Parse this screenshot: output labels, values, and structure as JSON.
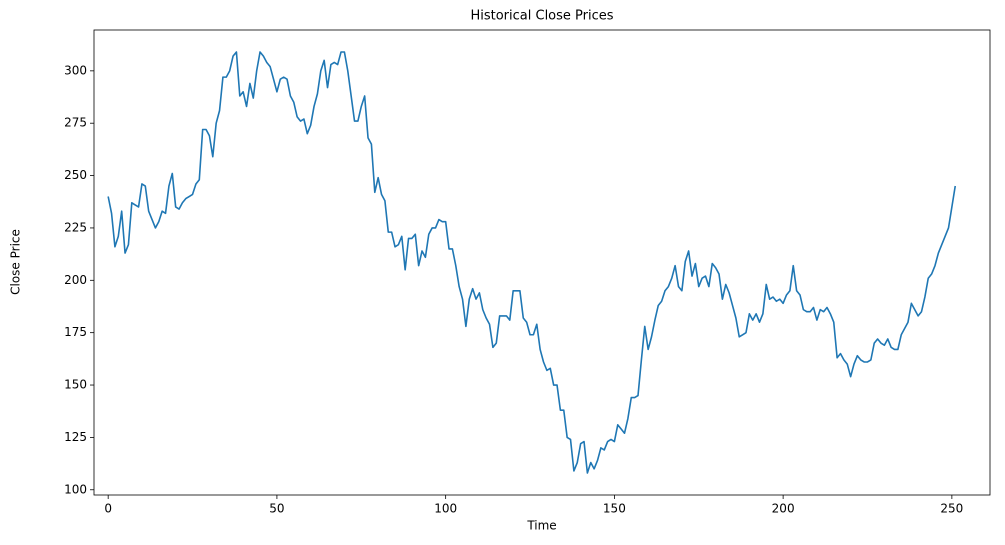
{
  "chart_data": {
    "type": "line",
    "title": "Historical Close Prices",
    "x_label": "Time",
    "y_label": "Close Price",
    "color": "#1f77b4",
    "x": [
      0,
      1,
      2,
      3,
      4,
      5,
      6,
      7,
      8,
      9,
      10,
      11,
      12,
      13,
      14,
      15,
      16,
      17,
      18,
      19,
      20,
      21,
      22,
      23,
      24,
      25,
      26,
      27,
      28,
      29,
      30,
      31,
      32,
      33,
      34,
      35,
      36,
      37,
      38,
      39,
      40,
      41,
      42,
      43,
      44,
      45,
      46,
      47,
      48,
      49,
      50,
      51,
      52,
      53,
      54,
      55,
      56,
      57,
      58,
      59,
      60,
      61,
      62,
      63,
      64,
      65,
      66,
      67,
      68,
      69,
      70,
      71,
      72,
      73,
      74,
      75,
      76,
      77,
      78,
      79,
      80,
      81,
      82,
      83,
      84,
      85,
      86,
      87,
      88,
      89,
      90,
      91,
      92,
      93,
      94,
      95,
      96,
      97,
      98,
      99,
      100,
      101,
      102,
      103,
      104,
      105,
      106,
      107,
      108,
      109,
      110,
      111,
      112,
      113,
      114,
      115,
      116,
      117,
      118,
      119,
      120,
      121,
      122,
      123,
      124,
      125,
      126,
      127,
      128,
      129,
      130,
      131,
      132,
      133,
      134,
      135,
      136,
      137,
      138,
      139,
      140,
      141,
      142,
      143,
      144,
      145,
      146,
      147,
      148,
      149,
      150,
      151,
      152,
      153,
      154,
      155,
      156,
      157,
      158,
      159,
      160,
      161,
      162,
      163,
      164,
      165,
      166,
      167,
      168,
      169,
      170,
      171,
      172,
      173,
      174,
      175,
      176,
      177,
      178,
      179,
      180,
      181,
      182,
      183,
      184,
      185,
      186,
      187,
      188,
      189,
      190,
      191,
      192,
      193,
      194,
      195,
      196,
      197,
      198,
      199,
      200,
      201,
      202,
      203,
      204,
      205,
      206,
      207,
      208,
      209,
      210,
      211,
      212,
      213,
      214,
      215,
      216,
      217,
      218,
      219,
      220,
      221,
      222,
      223,
      224,
      225,
      226,
      227,
      228,
      229,
      230,
      231,
      232,
      233,
      234,
      235,
      236,
      237,
      238,
      239,
      240,
      241,
      242,
      243,
      244,
      245,
      246,
      247,
      248,
      249,
      250,
      251
    ],
    "values": [
      240,
      232,
      216,
      221,
      233,
      213,
      217,
      237,
      236,
      235,
      246,
      245,
      233,
      229,
      225,
      228,
      233,
      232,
      245,
      251,
      235,
      234,
      237,
      239,
      240,
      241,
      246,
      248,
      272,
      272,
      269,
      259,
      275,
      281,
      297,
      297,
      300,
      307,
      309,
      288,
      290,
      283,
      294,
      287,
      300,
      309,
      307,
      304,
      302,
      296,
      290,
      296,
      297,
      296,
      288,
      285,
      278,
      276,
      277,
      270,
      274,
      283,
      289,
      300,
      305,
      292,
      303,
      304,
      303,
      309,
      309,
      300,
      288,
      276,
      276,
      283,
      288,
      268,
      265,
      242,
      249,
      241,
      238,
      223,
      223,
      216,
      217,
      221,
      205,
      220,
      220,
      222,
      207,
      214,
      211,
      222,
      225,
      225,
      229,
      228,
      228,
      215,
      215,
      207,
      197,
      191,
      178,
      191,
      196,
      191,
      194,
      186,
      182,
      179,
      168,
      170,
      183,
      183,
      183,
      181,
      195,
      195,
      195,
      182,
      180,
      174,
      174,
      179,
      167,
      161,
      157,
      158,
      150,
      150,
      138,
      138,
      125,
      124,
      109,
      113,
      122,
      123,
      108,
      113,
      110,
      114,
      120,
      119,
      123,
      124,
      123,
      131,
      129,
      127,
      134,
      144,
      144,
      145,
      162,
      178,
      167,
      173,
      181,
      188,
      190,
      195,
      197,
      201,
      207,
      197,
      195,
      209,
      214,
      202,
      208,
      197,
      201,
      202,
      197,
      208,
      206,
      203,
      191,
      198,
      194,
      188,
      182,
      173,
      174,
      175,
      184,
      181,
      184,
      180,
      184,
      198,
      191,
      192,
      190,
      191,
      189,
      193,
      195,
      207,
      195,
      193,
      186,
      185,
      185,
      187,
      181,
      186,
      185,
      187,
      184,
      180,
      163,
      165,
      162,
      160,
      154,
      160,
      164,
      162,
      161,
      161,
      162,
      170,
      172,
      170,
      169,
      172,
      168,
      167,
      167,
      174,
      177,
      180,
      189,
      186,
      183,
      185,
      192,
      201,
      203,
      207,
      213,
      217,
      221,
      225,
      235,
      245
    ],
    "xlim": [
      -4.2,
      261.3
    ],
    "ylim": [
      97.5,
      319.5
    ],
    "xticks": [
      0,
      50,
      100,
      150,
      200,
      250
    ],
    "yticks": [
      100,
      125,
      150,
      175,
      200,
      225,
      250,
      275,
      300
    ]
  }
}
